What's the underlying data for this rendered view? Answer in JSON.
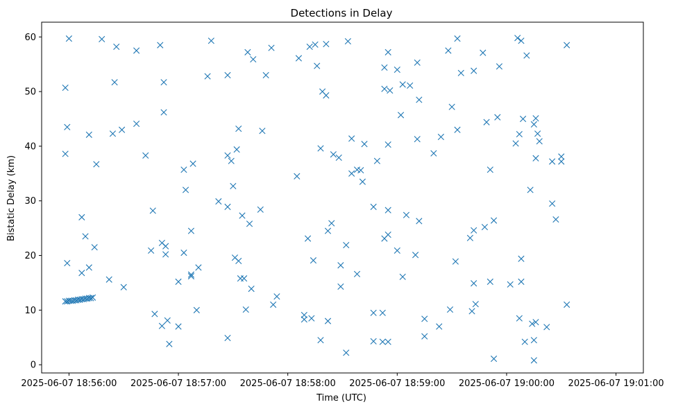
{
  "chart_data": {
    "type": "scatter",
    "title": "Detections in Delay",
    "xlabel": "Time (UTC)",
    "ylabel": "Bistatic Delay (km)",
    "x_ticks": [
      "2025-06-07 18:56:00",
      "2025-06-07 18:57:00",
      "2025-06-07 18:58:00",
      "2025-06-07 18:59:00",
      "2025-06-07 19:00:00",
      "2025-06-07 19:01:00"
    ],
    "xlim": [
      "2025-06-07 18:55:45",
      "2025-06-07 19:01:15"
    ],
    "y_ticks": [
      0,
      10,
      20,
      30,
      40,
      50,
      60
    ],
    "ylim": [
      -1.5,
      62.7
    ],
    "marker": "x",
    "color": "#1f77b4",
    "grid": false,
    "points": [
      [
        "2025-06-07 18:55:58",
        11.6
      ],
      [
        "2025-06-07 18:55:59",
        11.6
      ],
      [
        "2025-06-07 18:56:00",
        11.7
      ],
      [
        "2025-06-07 18:56:01",
        11.7
      ],
      [
        "2025-06-07 18:56:02",
        11.7
      ],
      [
        "2025-06-07 18:56:03",
        11.8
      ],
      [
        "2025-06-07 18:56:04",
        11.8
      ],
      [
        "2025-06-07 18:56:05",
        11.9
      ],
      [
        "2025-06-07 18:56:06",
        11.9
      ],
      [
        "2025-06-07 18:56:07",
        12.0
      ],
      [
        "2025-06-07 18:56:08",
        12.0
      ],
      [
        "2025-06-07 18:56:09",
        12.1
      ],
      [
        "2025-06-07 18:56:10",
        12.1
      ],
      [
        "2025-06-07 18:56:11",
        12.2
      ],
      [
        "2025-06-07 18:56:12",
        12.2
      ],
      [
        "2025-06-07 18:56:13",
        12.3
      ],
      [
        "2025-06-07 18:55:58",
        50.7
      ],
      [
        "2025-06-07 18:55:58",
        38.6
      ],
      [
        "2025-06-07 18:55:59",
        18.6
      ],
      [
        "2025-06-07 18:55:59",
        43.5
      ],
      [
        "2025-06-07 18:56:00",
        59.7
      ],
      [
        "2025-06-07 18:56:07",
        27.0
      ],
      [
        "2025-06-07 18:56:07",
        16.8
      ],
      [
        "2025-06-07 18:56:09",
        23.5
      ],
      [
        "2025-06-07 18:56:11",
        42.1
      ],
      [
        "2025-06-07 18:56:11",
        17.8
      ],
      [
        "2025-06-07 18:56:14",
        21.5
      ],
      [
        "2025-06-07 18:56:15",
        36.7
      ],
      [
        "2025-06-07 18:56:18",
        59.6
      ],
      [
        "2025-06-07 18:56:22",
        15.6
      ],
      [
        "2025-06-07 18:56:24",
        42.3
      ],
      [
        "2025-06-07 18:56:25",
        51.7
      ],
      [
        "2025-06-07 18:56:26",
        58.2
      ],
      [
        "2025-06-07 18:56:29",
        43.0
      ],
      [
        "2025-06-07 18:56:30",
        14.2
      ],
      [
        "2025-06-07 18:56:37",
        57.5
      ],
      [
        "2025-06-07 18:56:37",
        44.1
      ],
      [
        "2025-06-07 18:56:42",
        38.3
      ],
      [
        "2025-06-07 18:56:45",
        20.9
      ],
      [
        "2025-06-07 18:56:46",
        28.2
      ],
      [
        "2025-06-07 18:56:47",
        9.3
      ],
      [
        "2025-06-07 18:56:50",
        58.5
      ],
      [
        "2025-06-07 18:56:51",
        22.3
      ],
      [
        "2025-06-07 18:56:51",
        7.1
      ],
      [
        "2025-06-07 18:56:52",
        51.7
      ],
      [
        "2025-06-07 18:56:52",
        46.2
      ],
      [
        "2025-06-07 18:56:53",
        21.7
      ],
      [
        "2025-06-07 18:56:53",
        20.2
      ],
      [
        "2025-06-07 18:56:54",
        8.1
      ],
      [
        "2025-06-07 18:56:55",
        3.8
      ],
      [
        "2025-06-07 18:57:00",
        15.2
      ],
      [
        "2025-06-07 18:57:00",
        7.0
      ],
      [
        "2025-06-07 18:57:03",
        35.7
      ],
      [
        "2025-06-07 18:57:03",
        20.5
      ],
      [
        "2025-06-07 18:57:04",
        32.0
      ],
      [
        "2025-06-07 18:57:07",
        16.2
      ],
      [
        "2025-06-07 18:57:07",
        16.5
      ],
      [
        "2025-06-07 18:57:07",
        24.5
      ],
      [
        "2025-06-07 18:57:08",
        36.8
      ],
      [
        "2025-06-07 18:57:10",
        10.0
      ],
      [
        "2025-06-07 18:57:11",
        17.8
      ],
      [
        "2025-06-07 18:57:16",
        52.8
      ],
      [
        "2025-06-07 18:57:18",
        59.3
      ],
      [
        "2025-06-07 18:57:22",
        29.9
      ],
      [
        "2025-06-07 18:57:27",
        53.0
      ],
      [
        "2025-06-07 18:57:27",
        38.3
      ],
      [
        "2025-06-07 18:57:27",
        28.9
      ],
      [
        "2025-06-07 18:57:27",
        4.9
      ],
      [
        "2025-06-07 18:57:29",
        37.3
      ],
      [
        "2025-06-07 18:57:30",
        32.7
      ],
      [
        "2025-06-07 18:57:31",
        19.6
      ],
      [
        "2025-06-07 18:57:32",
        39.4
      ],
      [
        "2025-06-07 18:57:33",
        43.2
      ],
      [
        "2025-06-07 18:57:33",
        19.0
      ],
      [
        "2025-06-07 18:57:34",
        15.8
      ],
      [
        "2025-06-07 18:57:35",
        27.3
      ],
      [
        "2025-06-07 18:57:36",
        15.8
      ],
      [
        "2025-06-07 18:57:37",
        10.1
      ],
      [
        "2025-06-07 18:57:38",
        57.2
      ],
      [
        "2025-06-07 18:57:39",
        25.8
      ],
      [
        "2025-06-07 18:57:40",
        13.9
      ],
      [
        "2025-06-07 18:57:41",
        55.9
      ],
      [
        "2025-06-07 18:57:45",
        28.4
      ],
      [
        "2025-06-07 18:57:46",
        42.8
      ],
      [
        "2025-06-07 18:57:48",
        53.0
      ],
      [
        "2025-06-07 18:57:51",
        58.0
      ],
      [
        "2025-06-07 18:57:52",
        11.0
      ],
      [
        "2025-06-07 18:57:54",
        12.5
      ],
      [
        "2025-06-07 18:58:05",
        34.5
      ],
      [
        "2025-06-07 18:58:06",
        56.1
      ],
      [
        "2025-06-07 18:58:09",
        9.1
      ],
      [
        "2025-06-07 18:58:09",
        8.3
      ],
      [
        "2025-06-07 18:58:11",
        23.1
      ],
      [
        "2025-06-07 18:58:12",
        58.2
      ],
      [
        "2025-06-07 18:58:13",
        8.5
      ],
      [
        "2025-06-07 18:58:14",
        19.1
      ],
      [
        "2025-06-07 18:58:15",
        58.6
      ],
      [
        "2025-06-07 18:58:16",
        54.7
      ],
      [
        "2025-06-07 18:58:18",
        39.6
      ],
      [
        "2025-06-07 18:58:18",
        4.5
      ],
      [
        "2025-06-07 18:58:19",
        50.0
      ],
      [
        "2025-06-07 18:58:21",
        49.3
      ],
      [
        "2025-06-07 18:58:21",
        58.7
      ],
      [
        "2025-06-07 18:58:22",
        24.5
      ],
      [
        "2025-06-07 18:58:22",
        8.0
      ],
      [
        "2025-06-07 18:58:24",
        25.9
      ],
      [
        "2025-06-07 18:58:25",
        38.5
      ],
      [
        "2025-06-07 18:58:28",
        37.9
      ],
      [
        "2025-06-07 18:58:29",
        14.3
      ],
      [
        "2025-06-07 18:58:29",
        18.2
      ],
      [
        "2025-06-07 18:58:32",
        21.9
      ],
      [
        "2025-06-07 18:58:32",
        2.2
      ],
      [
        "2025-06-07 18:58:33",
        59.2
      ],
      [
        "2025-06-07 18:58:35",
        41.4
      ],
      [
        "2025-06-07 18:58:35",
        35.0
      ],
      [
        "2025-06-07 18:58:38",
        35.7
      ],
      [
        "2025-06-07 18:58:38",
        16.6
      ],
      [
        "2025-06-07 18:58:40",
        35.6
      ],
      [
        "2025-06-07 18:58:41",
        33.5
      ],
      [
        "2025-06-07 18:58:42",
        40.4
      ],
      [
        "2025-06-07 18:58:47",
        28.9
      ],
      [
        "2025-06-07 18:58:47",
        9.5
      ],
      [
        "2025-06-07 18:58:47",
        4.3
      ],
      [
        "2025-06-07 18:58:49",
        37.3
      ],
      [
        "2025-06-07 18:58:52",
        9.5
      ],
      [
        "2025-06-07 18:58:52",
        4.2
      ],
      [
        "2025-06-07 18:58:53",
        54.4
      ],
      [
        "2025-06-07 18:58:53",
        50.5
      ],
      [
        "2025-06-07 18:58:53",
        23.1
      ],
      [
        "2025-06-07 18:58:55",
        57.2
      ],
      [
        "2025-06-07 18:58:55",
        40.3
      ],
      [
        "2025-06-07 18:58:55",
        28.3
      ],
      [
        "2025-06-07 18:58:55",
        23.8
      ],
      [
        "2025-06-07 18:58:55",
        4.2
      ],
      [
        "2025-06-07 18:58:56",
        50.2
      ],
      [
        "2025-06-07 18:59:00",
        54.0
      ],
      [
        "2025-06-07 18:59:00",
        20.9
      ],
      [
        "2025-06-07 18:59:02",
        45.7
      ],
      [
        "2025-06-07 18:59:03",
        51.3
      ],
      [
        "2025-06-07 18:59:03",
        16.1
      ],
      [
        "2025-06-07 18:59:05",
        27.4
      ],
      [
        "2025-06-07 18:59:07",
        51.1
      ],
      [
        "2025-06-07 18:59:10",
        20.1
      ],
      [
        "2025-06-07 18:59:11",
        55.3
      ],
      [
        "2025-06-07 18:59:11",
        41.3
      ],
      [
        "2025-06-07 18:59:12",
        48.5
      ],
      [
        "2025-06-07 18:59:12",
        26.3
      ],
      [
        "2025-06-07 18:59:15",
        8.4
      ],
      [
        "2025-06-07 18:59:15",
        5.2
      ],
      [
        "2025-06-07 18:59:20",
        38.7
      ],
      [
        "2025-06-07 18:59:23",
        7.0
      ],
      [
        "2025-06-07 18:59:24",
        41.7
      ],
      [
        "2025-06-07 18:59:28",
        57.5
      ],
      [
        "2025-06-07 18:59:29",
        10.1
      ],
      [
        "2025-06-07 18:59:30",
        47.2
      ],
      [
        "2025-06-07 18:59:32",
        18.9
      ],
      [
        "2025-06-07 18:59:33",
        59.7
      ],
      [
        "2025-06-07 18:59:33",
        43.0
      ],
      [
        "2025-06-07 18:59:35",
        53.4
      ],
      [
        "2025-06-07 18:59:40",
        23.2
      ],
      [
        "2025-06-07 18:59:41",
        9.8
      ],
      [
        "2025-06-07 18:59:42",
        53.8
      ],
      [
        "2025-06-07 18:59:42",
        24.6
      ],
      [
        "2025-06-07 18:59:42",
        14.9
      ],
      [
        "2025-06-07 18:59:43",
        11.1
      ],
      [
        "2025-06-07 18:59:47",
        57.1
      ],
      [
        "2025-06-07 18:59:48",
        25.2
      ],
      [
        "2025-06-07 18:59:49",
        44.4
      ],
      [
        "2025-06-07 18:59:51",
        35.7
      ],
      [
        "2025-06-07 18:59:51",
        15.2
      ],
      [
        "2025-06-07 18:59:53",
        26.4
      ],
      [
        "2025-06-07 18:59:53",
        1.1
      ],
      [
        "2025-06-07 18:59:55",
        45.3
      ],
      [
        "2025-06-07 18:59:56",
        54.6
      ],
      [
        "2025-06-07 19:00:02",
        14.7
      ],
      [
        "2025-06-07 19:00:05",
        40.5
      ],
      [
        "2025-06-07 19:00:06",
        59.8
      ],
      [
        "2025-06-07 19:00:07",
        42.2
      ],
      [
        "2025-06-07 19:00:07",
        8.5
      ],
      [
        "2025-06-07 19:00:08",
        59.3
      ],
      [
        "2025-06-07 19:00:08",
        19.4
      ],
      [
        "2025-06-07 19:00:08",
        15.2
      ],
      [
        "2025-06-07 19:00:09",
        45.0
      ],
      [
        "2025-06-07 19:00:10",
        4.2
      ],
      [
        "2025-06-07 19:00:11",
        56.6
      ],
      [
        "2025-06-07 19:00:13",
        32.0
      ],
      [
        "2025-06-07 19:00:14",
        7.5
      ],
      [
        "2025-06-07 19:00:15",
        44.0
      ],
      [
        "2025-06-07 19:00:15",
        4.5
      ],
      [
        "2025-06-07 19:00:15",
        0.8
      ],
      [
        "2025-06-07 19:00:16",
        45.1
      ],
      [
        "2025-06-07 19:00:16",
        37.8
      ],
      [
        "2025-06-07 19:00:16",
        7.8
      ],
      [
        "2025-06-07 19:00:17",
        42.3
      ],
      [
        "2025-06-07 19:00:18",
        40.9
      ],
      [
        "2025-06-07 19:00:22",
        6.9
      ],
      [
        "2025-06-07 19:00:25",
        37.2
      ],
      [
        "2025-06-07 19:00:25",
        29.5
      ],
      [
        "2025-06-07 19:00:27",
        26.6
      ],
      [
        "2025-06-07 19:00:30",
        38.1
      ],
      [
        "2025-06-07 19:00:30",
        37.2
      ],
      [
        "2025-06-07 19:00:33",
        58.5
      ],
      [
        "2025-06-07 19:00:33",
        11.0
      ]
    ]
  }
}
